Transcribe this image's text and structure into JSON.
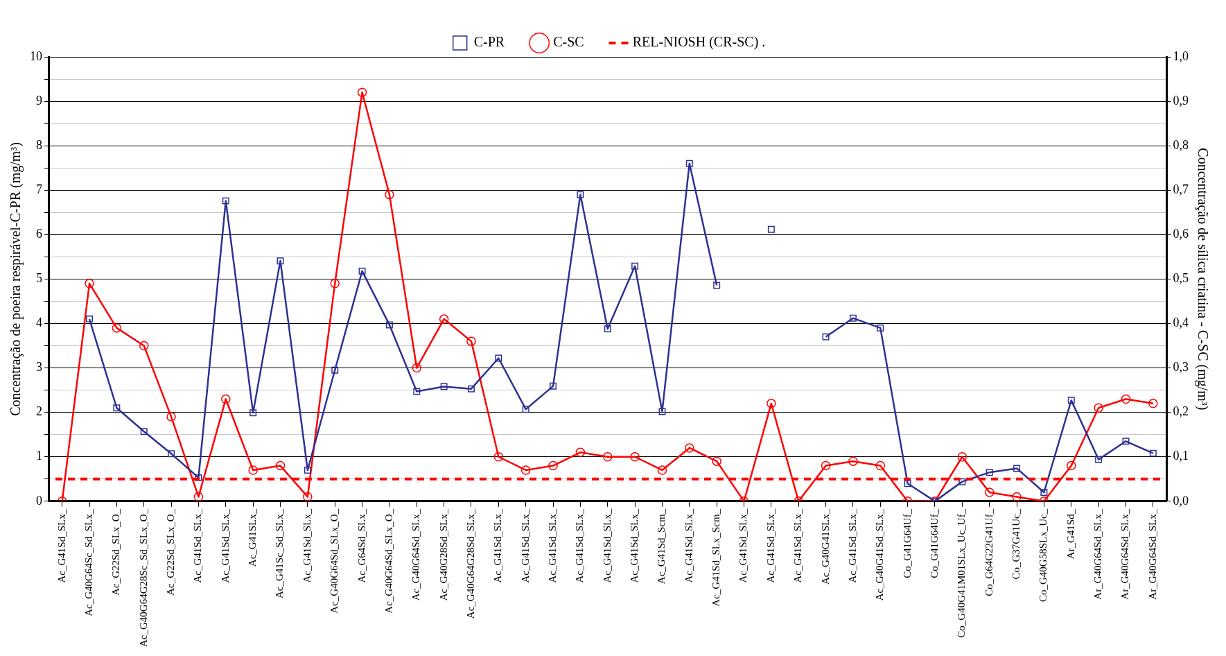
{
  "chart_data": {
    "type": "line",
    "ylabel": "Concentração de poeira respirável-C-PR (mg/m³)",
    "y2label": "Concentração de sílica criatina - C-SC (mg/m³)",
    "categories": [
      "Ac_G41Sd_SLx_",
      "Ac_G40G64Sc_Sd_SLx_",
      "Ac_G22Sd_SLx_O_",
      "Ac_G40G64G28Sc_Sd_SLx_O_",
      "Ac_G22Sd_SLx_O_",
      "Ac_G41Sd_SLx_",
      "Ac_G41Sd_SLx_",
      "Ac_G41SLx_",
      "Ac_G41Sc_Sd_SLx_",
      "Ac_G41Sd_SLx_",
      "Ac_G40G64Sd_SLx_O_",
      "Ac_G64Sd_SLx_",
      "Ac_G40G64Sd_SLx_O_",
      "Ac_G40G64Sd_SLx_",
      "Ac_G40G28Sd_SLx_",
      "Ac_G40G64G28Sd_SLx_",
      "Ac_G41Sd_SLx_",
      "Ac_G41Sd_SLx_",
      "Ac_G41Sd_SLx_",
      "Ac_G41Sd_SLx_",
      "Ac_G41Sd_SLx_",
      "Ac_G41Sd_SLx_",
      "Ac_G41Sd_Scm_",
      "Ac_G41Sd_SLx_",
      "Ac_G41Sd_SLx_Scm_",
      "Ac_G41Sd_SLx_",
      "Ac_G41Sd_SLx_",
      "Ac_G41Sd_SLx_",
      "Ac_G40G41SLx_",
      "Ac_G41Sd_SLx_",
      "Ac_G40G41Sd_SLx_",
      "Co_G41G64Uf_",
      "Co_G41G64Uf_",
      "Co_G40G41M01SLx_Uc_Uf_",
      "Co_G64G22G41Uf_",
      "Co_G37G41Uc_",
      "Co_G40G58SLx_Uc_",
      "Ar_G41Sd_",
      "Ar_G40G64Sd_SLx_",
      "Ar_G40G64Sd_SLx_",
      "Ar_G40G64Sd_SLx_"
    ],
    "series": [
      {
        "name": "C-PR",
        "color": "#2e3192",
        "marker": "square",
        "values": [
          null,
          4.1,
          2.1,
          1.57,
          1.07,
          0.53,
          6.76,
          1.99,
          5.41,
          0.7,
          2.95,
          5.18,
          3.97,
          2.47,
          2.58,
          2.53,
          3.22,
          2.07,
          2.59,
          6.9,
          3.88,
          5.29,
          2.02,
          7.6,
          4.86,
          null,
          6.12,
          null,
          3.7,
          4.12,
          3.9,
          0.4,
          0.0,
          0.44,
          0.65,
          0.74,
          0.2,
          2.27,
          0.94,
          1.35,
          1.08
        ]
      },
      {
        "name": "C-SC",
        "color": "#ff0000",
        "marker": "circle",
        "axis": "y2",
        "values": [
          0.0,
          0.49,
          0.39,
          0.35,
          0.19,
          0.01,
          0.23,
          0.07,
          0.08,
          0.01,
          0.49,
          0.92,
          0.69,
          0.3,
          0.41,
          0.36,
          0.1,
          0.07,
          0.08,
          0.11,
          0.1,
          0.1,
          0.07,
          0.12,
          0.09,
          0.0,
          0.22,
          0.0,
          0.08,
          0.09,
          0.08,
          0.0,
          0.0,
          0.1,
          0.02,
          0.01,
          0.0,
          0.08,
          0.21,
          0.23,
          0.22
        ]
      }
    ],
    "ylim": [
      0,
      10
    ],
    "yticks": [
      0,
      {
        "value": 0.5,
        "label": null
      },
      1,
      {
        "value": 1.5,
        "label": null
      },
      2,
      {
        "value": 2.5,
        "label": null
      },
      3,
      {
        "value": 3.5,
        "label": null
      },
      4,
      {
        "value": 4.5,
        "label": null
      },
      5,
      {
        "value": 5.5,
        "label": null
      },
      6,
      {
        "value": 6.5,
        "label": null
      },
      7,
      {
        "value": 7.5,
        "label": null
      },
      8,
      {
        "value": 8.5,
        "label": null
      },
      9,
      {
        "value": 9.5,
        "label": null
      },
      10
    ],
    "y2lim": [
      0,
      1
    ],
    "y2ticks": [
      {
        "value": 0,
        "label": "0,0"
      },
      {
        "value": 0.1,
        "label": "0,1"
      },
      {
        "value": 0.2,
        "label": "0,2"
      },
      {
        "value": 0.3,
        "label": "0,3"
      },
      {
        "value": 0.4,
        "label": "0,4"
      },
      {
        "value": 0.5,
        "label": "0,5"
      },
      {
        "value": 0.6,
        "label": "0,6"
      },
      {
        "value": 0.7,
        "label": "0,7"
      },
      {
        "value": 0.8,
        "label": "0,8"
      },
      {
        "value": 0.9,
        "label": "0,9"
      },
      {
        "value": 1,
        "label": "1,0"
      }
    ],
    "ref_lines": [
      {
        "axis": "y2",
        "value": 0.05,
        "label": "REL-NIOSH (CR-SC) .",
        "color": "#ff0000",
        "line_style": "dashed"
      }
    ],
    "grid": "y",
    "legend": "top",
    "line_style": "solid"
  }
}
